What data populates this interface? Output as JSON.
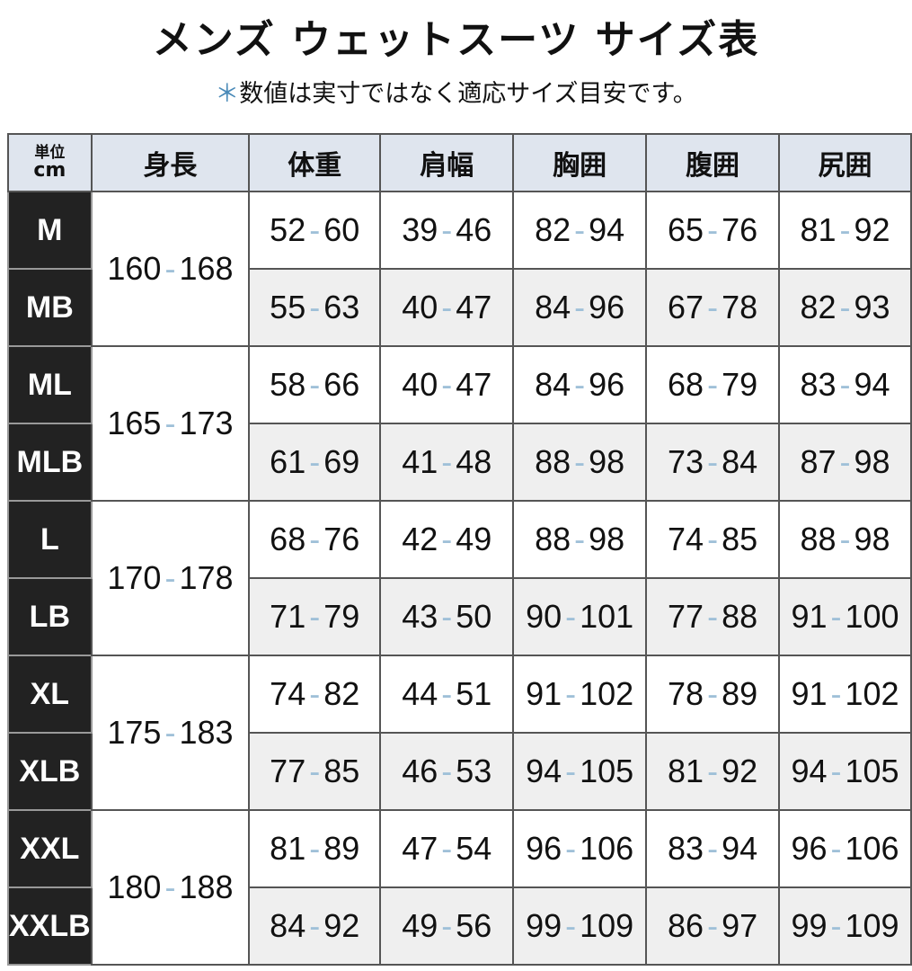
{
  "title": "メンズ ウェットスーツ サイズ表",
  "subtitle": {
    "mark": "＊",
    "text": "数値は実寸ではなく適応サイズ目安です。"
  },
  "table": {
    "unit_line1": "単位",
    "unit_line2": "cm",
    "headers": [
      "身長",
      "体重",
      "肩幅",
      "胸囲",
      "腹囲",
      "尻囲"
    ],
    "colors": {
      "header_bg": "#dfe5ee",
      "size_bg": "#222222",
      "dash": "#9fc0d8",
      "alt_row": "#efefef"
    },
    "groups": [
      {
        "height": [
          "160",
          "168"
        ],
        "rows": [
          {
            "size": "M",
            "values": [
              [
                "52",
                "60"
              ],
              [
                "39",
                "46"
              ],
              [
                "82",
                "94"
              ],
              [
                "65",
                "76"
              ],
              [
                "81",
                "92"
              ]
            ]
          },
          {
            "size": "MB",
            "values": [
              [
                "55",
                "63"
              ],
              [
                "40",
                "47"
              ],
              [
                "84",
                "96"
              ],
              [
                "67",
                "78"
              ],
              [
                "82",
                "93"
              ]
            ]
          }
        ]
      },
      {
        "height": [
          "165",
          "173"
        ],
        "rows": [
          {
            "size": "ML",
            "values": [
              [
                "58",
                "66"
              ],
              [
                "40",
                "47"
              ],
              [
                "84",
                "96"
              ],
              [
                "68",
                "79"
              ],
              [
                "83",
                "94"
              ]
            ]
          },
          {
            "size": "MLB",
            "values": [
              [
                "61",
                "69"
              ],
              [
                "41",
                "48"
              ],
              [
                "88",
                "98"
              ],
              [
                "73",
                "84"
              ],
              [
                "87",
                "98"
              ]
            ]
          }
        ]
      },
      {
        "height": [
          "170",
          "178"
        ],
        "rows": [
          {
            "size": "L",
            "values": [
              [
                "68",
                "76"
              ],
              [
                "42",
                "49"
              ],
              [
                "88",
                "98"
              ],
              [
                "74",
                "85"
              ],
              [
                "88",
                "98"
              ]
            ]
          },
          {
            "size": "LB",
            "values": [
              [
                "71",
                "79"
              ],
              [
                "43",
                "50"
              ],
              [
                "90",
                "101"
              ],
              [
                "77",
                "88"
              ],
              [
                "91",
                "100"
              ]
            ]
          }
        ]
      },
      {
        "height": [
          "175",
          "183"
        ],
        "rows": [
          {
            "size": "XL",
            "values": [
              [
                "74",
                "82"
              ],
              [
                "44",
                "51"
              ],
              [
                "91",
                "102"
              ],
              [
                "78",
                "89"
              ],
              [
                "91",
                "102"
              ]
            ]
          },
          {
            "size": "XLB",
            "values": [
              [
                "77",
                "85"
              ],
              [
                "46",
                "53"
              ],
              [
                "94",
                "105"
              ],
              [
                "81",
                "92"
              ],
              [
                "94",
                "105"
              ]
            ]
          }
        ]
      },
      {
        "height": [
          "180",
          "188"
        ],
        "rows": [
          {
            "size": "XXL",
            "values": [
              [
                "81",
                "89"
              ],
              [
                "47",
                "54"
              ],
              [
                "96",
                "106"
              ],
              [
                "83",
                "94"
              ],
              [
                "96",
                "106"
              ]
            ]
          },
          {
            "size": "XXLB",
            "values": [
              [
                "84",
                "92"
              ],
              [
                "49",
                "56"
              ],
              [
                "99",
                "109"
              ],
              [
                "86",
                "97"
              ],
              [
                "99",
                "109"
              ]
            ]
          }
        ]
      }
    ]
  }
}
